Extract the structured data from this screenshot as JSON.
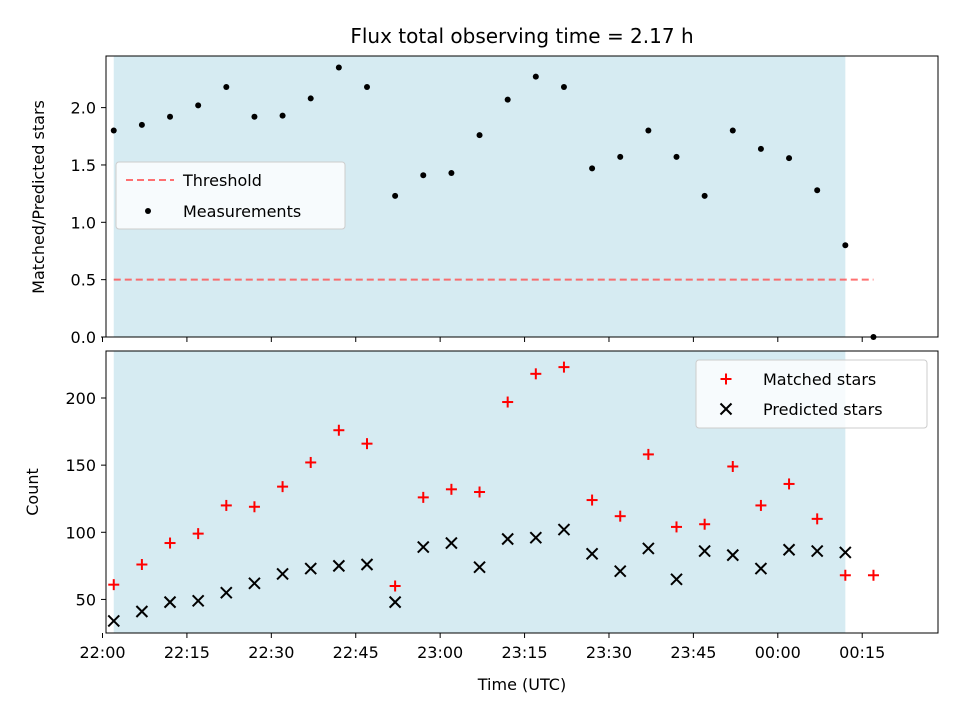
{
  "figure": {
    "title": "Flux total observing time = 2.17 h",
    "xlabel": "Time (UTC)"
  },
  "chart_data": [
    {
      "type": "scatter",
      "panel": "top",
      "ylabel": "Matched/Predicted stars",
      "ylim": [
        0,
        2.45
      ],
      "yticks": [
        0.0,
        0.5,
        1.0,
        1.5,
        2.0
      ],
      "ytick_labels": [
        "0.0",
        "0.5",
        "1.0",
        "1.5",
        "2.0"
      ],
      "xlim": [
        -12,
        1012
      ],
      "shaded_span_minutes": [
        2,
        132
      ],
      "shade_color": "#add8e6",
      "legend_position": "center-left",
      "threshold": {
        "name": "Threshold",
        "value": 0.5,
        "x_range_minutes": [
          2,
          137
        ],
        "color": "#ff4d4d"
      },
      "series": [
        {
          "name": "Measurements",
          "color": "#000000",
          "x_minutes": [
            2,
            7,
            12,
            17,
            22,
            27,
            32,
            37,
            42,
            47,
            52,
            57,
            62,
            67,
            72,
            77,
            82,
            87,
            92,
            97,
            102,
            107,
            112,
            117,
            122,
            127,
            132,
            137
          ],
          "values": [
            1.8,
            1.85,
            1.92,
            2.02,
            2.18,
            1.92,
            1.93,
            2.08,
            2.35,
            2.18,
            1.23,
            1.41,
            1.43,
            1.76,
            2.07,
            2.27,
            2.18,
            1.47,
            1.57,
            1.8,
            1.57,
            1.23,
            1.8,
            1.64,
            1.56,
            1.28,
            0.8,
            0.0
          ]
        }
      ]
    },
    {
      "type": "scatter",
      "panel": "bottom",
      "ylabel": "Count",
      "ylim": [
        25,
        235
      ],
      "yticks": [
        50,
        100,
        150,
        200
      ],
      "ytick_labels": [
        "50",
        "100",
        "150",
        "200"
      ],
      "xticks_minutes": [
        0,
        15,
        30,
        45,
        60,
        75,
        90,
        105,
        120,
        135
      ],
      "xtick_labels": [
        "22:00",
        "22:15",
        "22:30",
        "22:45",
        "23:00",
        "23:15",
        "23:30",
        "23:45",
        "00:00",
        "00:15"
      ],
      "shaded_span_minutes": [
        2,
        132
      ],
      "shade_color": "#add8e6",
      "legend_position": "top-right",
      "series": [
        {
          "name": "Matched stars",
          "marker": "plus",
          "color": "#ff0000",
          "x_minutes": [
            2,
            7,
            12,
            17,
            22,
            27,
            32,
            37,
            42,
            47,
            52,
            57,
            62,
            67,
            72,
            77,
            82,
            87,
            92,
            97,
            102,
            107,
            112,
            117,
            122,
            127,
            132,
            137
          ],
          "values": [
            61,
            76,
            92,
            99,
            120,
            119,
            134,
            152,
            176,
            166,
            60,
            126,
            132,
            130,
            197,
            218,
            223,
            124,
            112,
            158,
            104,
            106,
            149,
            120,
            136,
            110,
            68,
            68
          ]
        },
        {
          "name": "Predicted stars",
          "marker": "x",
          "color": "#000000",
          "x_minutes": [
            2,
            7,
            12,
            17,
            22,
            27,
            32,
            37,
            42,
            47,
            52,
            57,
            62,
            67,
            72,
            77,
            82,
            87,
            92,
            97,
            102,
            107,
            112,
            117,
            122,
            127,
            132
          ],
          "values": [
            34,
            41,
            48,
            49,
            55,
            62,
            69,
            73,
            75,
            76,
            48,
            89,
            92,
            74,
            95,
            96,
            102,
            84,
            71,
            88,
            65,
            86,
            83,
            73,
            87,
            86,
            85
          ]
        }
      ]
    }
  ]
}
